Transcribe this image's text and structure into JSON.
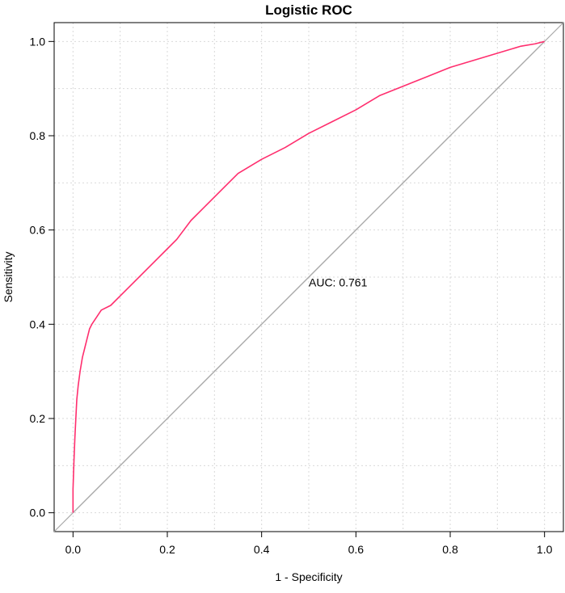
{
  "chart_data": {
    "type": "line",
    "title": "Logistic ROC",
    "xlabel": "1 - Specificity",
    "ylabel": "Sensitivity",
    "xlim": [
      -0.04,
      1.04
    ],
    "ylim": [
      -0.04,
      1.04
    ],
    "x_ticks": [
      "0.0",
      "0.2",
      "0.4",
      "0.6",
      "0.8",
      "1.0"
    ],
    "y_ticks": [
      "0.0",
      "0.2",
      "0.4",
      "0.6",
      "0.8",
      "1.0"
    ],
    "grid": true,
    "annotation": "AUC: 0.761",
    "annotation_position": {
      "x": 0.5,
      "y": 0.48
    },
    "colors": {
      "roc": "#ff2e6e",
      "reference": "#a8a8a8",
      "grid": "#d9d9d9"
    },
    "series": [
      {
        "x": [
          0.0,
          0.0,
          0.002,
          0.004,
          0.006,
          0.008,
          0.011,
          0.015,
          0.02,
          0.025,
          0.03,
          0.035,
          0.04,
          0.05,
          0.06,
          0.08,
          0.1,
          0.12,
          0.15,
          0.18,
          0.2,
          0.22,
          0.25,
          0.3,
          0.33,
          0.35,
          0.4,
          0.45,
          0.5,
          0.55,
          0.6,
          0.65,
          0.7,
          0.75,
          0.8,
          0.85,
          0.9,
          0.95,
          0.98,
          1.0
        ],
        "y": [
          0.0,
          0.05,
          0.11,
          0.16,
          0.2,
          0.24,
          0.27,
          0.3,
          0.33,
          0.35,
          0.37,
          0.39,
          0.4,
          0.415,
          0.43,
          0.44,
          0.46,
          0.48,
          0.51,
          0.54,
          0.56,
          0.58,
          0.62,
          0.67,
          0.7,
          0.72,
          0.75,
          0.775,
          0.805,
          0.83,
          0.855,
          0.885,
          0.905,
          0.925,
          0.945,
          0.96,
          0.975,
          0.99,
          0.995,
          1.0
        ]
      },
      {
        "x": [
          0.0,
          1.0
        ],
        "y": [
          0.0,
          1.0
        ]
      }
    ]
  }
}
